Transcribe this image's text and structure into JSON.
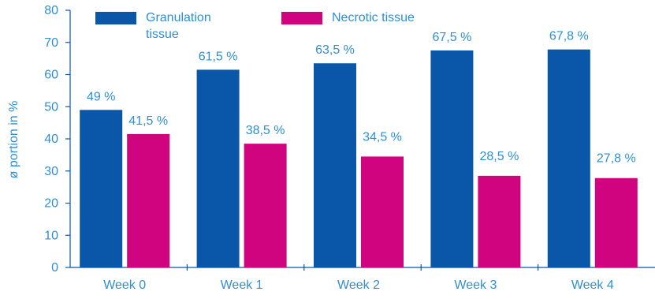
{
  "chart_data": {
    "type": "bar",
    "ylabel": "ø portion in %",
    "xlabel": "",
    "ylim": [
      0,
      80
    ],
    "y_ticks": [
      0,
      10,
      20,
      30,
      40,
      50,
      60,
      70,
      80
    ],
    "categories": [
      "Week 0",
      "Week 1",
      "Week 2",
      "Week 3",
      "Week 4"
    ],
    "series": [
      {
        "name": "Granulation tissue",
        "legend_lines": [
          "Granulation",
          "tissue"
        ],
        "color": "#0a56a8",
        "values": [
          49,
          61.5,
          63.5,
          67.5,
          67.8
        ],
        "labels": [
          "49 %",
          "61,5 %",
          "63,5 %",
          "67,5 %",
          "67,8 %"
        ]
      },
      {
        "name": "Necrotic tissue",
        "legend_lines": [
          "Necrotic tissue"
        ],
        "color": "#d0047f",
        "values": [
          41.5,
          38.5,
          34.5,
          28.5,
          27.8
        ],
        "labels": [
          "41,5 %",
          "38,5 %",
          "34,5 %",
          "28,5 %",
          "27,8 %"
        ]
      }
    ],
    "legend_position": "top-left",
    "grid": false,
    "text_color": "#2f8fd0",
    "axis_color": "#0a56a8"
  }
}
